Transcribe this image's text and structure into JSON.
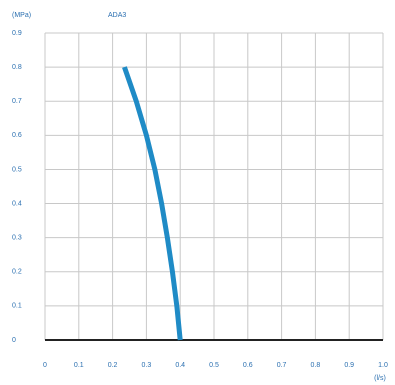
{
  "chart_data": {
    "type": "line",
    "title": "ADA3",
    "y_label": "(MPa)",
    "x_label": "(l/s)",
    "x": [
      0.235,
      0.27,
      0.3,
      0.325,
      0.345,
      0.362,
      0.377,
      0.39,
      0.4
    ],
    "series": [
      {
        "name": "ADA3",
        "color": "#1f8bc6",
        "values": [
          0.8,
          0.7,
          0.6,
          0.5,
          0.4,
          0.3,
          0.2,
          0.1,
          0
        ]
      }
    ],
    "xlim": [
      0,
      1
    ],
    "ylim": [
      0,
      0.9
    ],
    "xticks": [
      0,
      0.1,
      0.2,
      0.3,
      0.4,
      0.5,
      0.6,
      0.7,
      0.8,
      0.9,
      {
        "value": 1,
        "label": "1.0"
      }
    ],
    "yticks": [
      0,
      0.1,
      0.2,
      0.3,
      0.4,
      0.5,
      0.6,
      0.7,
      0.8,
      0.9
    ],
    "grid": true
  }
}
